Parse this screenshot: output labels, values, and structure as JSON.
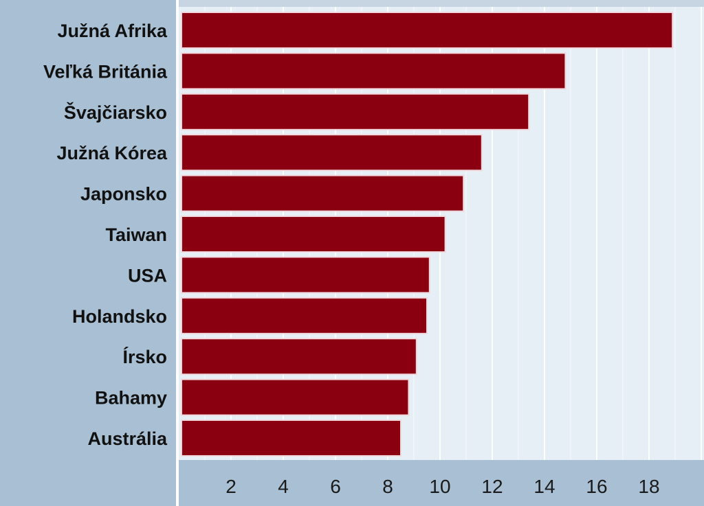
{
  "chart_data": {
    "type": "bar",
    "orientation": "horizontal",
    "categories": [
      "Južná Afrika",
      "Veľká Británia",
      "Švajčiarsko",
      "Južná Kórea",
      "Japonsko",
      "Taiwan",
      "USA",
      "Holandsko",
      "Írsko",
      "Bahamy",
      "Austrália"
    ],
    "values": [
      18.9,
      14.8,
      13.4,
      11.6,
      10.9,
      10.2,
      9.6,
      9.5,
      9.1,
      8.8,
      8.5
    ],
    "xticks": [
      2,
      4,
      6,
      8,
      10,
      12,
      14,
      16,
      18
    ],
    "xlim": [
      0,
      20
    ],
    "grid": true,
    "title": "",
    "xlabel": "",
    "ylabel": "",
    "colors": {
      "bar": "#8b0010",
      "bar_outline": "#f2d8dc",
      "plot_background": "#e6eef6",
      "page_background": "#a9bfd3",
      "grid": "#ffffff"
    }
  }
}
